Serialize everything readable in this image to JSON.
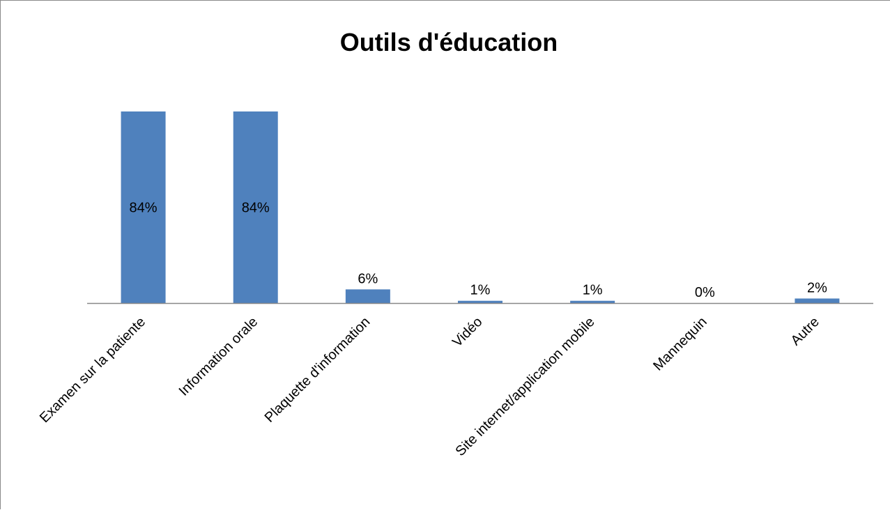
{
  "chart_data": {
    "type": "bar",
    "title": "Outils d'éducation",
    "categories": [
      "Examen sur la patiente",
      "Information orale",
      "Plaquette d'information",
      "Vidéo",
      "Site internet/application mobile",
      "Mannequin",
      "Autre"
    ],
    "values": [
      84,
      84,
      6,
      1,
      1,
      0,
      2
    ],
    "value_labels": [
      "84%",
      "84%",
      "6%",
      "1%",
      "1%",
      "0%",
      "2%"
    ],
    "value_unit": "%",
    "ylim": [
      0,
      84
    ],
    "grid": false,
    "legend": "none",
    "bar_color": "#4F81BD",
    "data_label_position": [
      "inside-center",
      "inside-center",
      "outside-end",
      "outside-end",
      "outside-end",
      "outside-end",
      "outside-end"
    ]
  }
}
